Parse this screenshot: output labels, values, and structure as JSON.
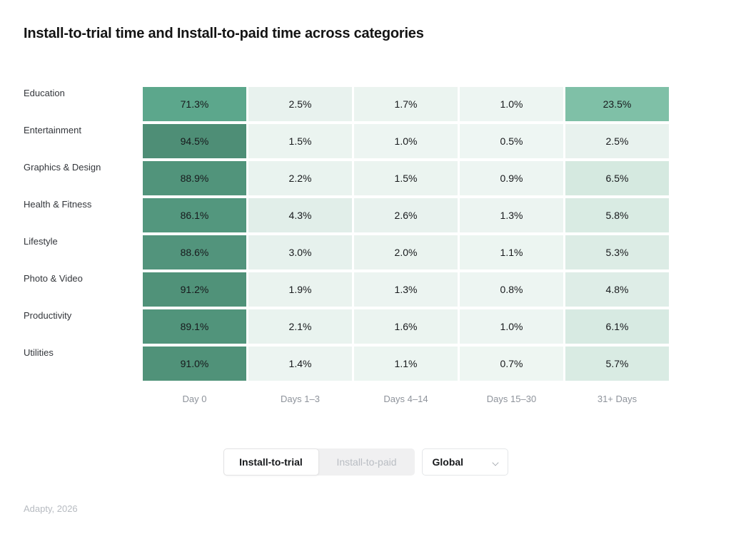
{
  "title": "Install-to-trial time and Install-to-paid time across categories",
  "chart_data": {
    "type": "heatmap",
    "rows": [
      "Education",
      "Entertainment",
      "Graphics & Design",
      "Health & Fitness",
      "Lifestyle",
      "Photo & Video",
      "Productivity",
      "Utilities"
    ],
    "columns": [
      "Day 0",
      "Days 1–3",
      "Days 4–14",
      "Days 15–30",
      "31+ Days"
    ],
    "values": [
      [
        71.3,
        2.5,
        1.7,
        1.0,
        23.5
      ],
      [
        94.5,
        1.5,
        1.0,
        0.5,
        2.5
      ],
      [
        88.9,
        2.2,
        1.5,
        0.9,
        6.5
      ],
      [
        86.1,
        4.3,
        2.6,
        1.3,
        5.8
      ],
      [
        88.6,
        3.0,
        2.0,
        1.1,
        5.3
      ],
      [
        91.2,
        1.9,
        1.3,
        0.8,
        4.8
      ],
      [
        89.1,
        2.1,
        1.6,
        1.0,
        6.1
      ],
      [
        91.0,
        1.4,
        1.1,
        0.7,
        5.7
      ]
    ],
    "unit": "%",
    "value_format": "one_decimal_percent",
    "legend": "none",
    "grid": "white 3px gaps between cells",
    "color_scale": {
      "stops": [
        {
          "value": 0,
          "color": "#f0f7f4"
        },
        {
          "value": 2.5,
          "color": "#e8f2ee"
        },
        {
          "value": 4.5,
          "color": "#e0eee8"
        },
        {
          "value": 6.5,
          "color": "#d5e9e0"
        },
        {
          "value": 23.5,
          "color": "#7fc0a7"
        },
        {
          "value": 71.3,
          "color": "#5ca78c"
        },
        {
          "value": 94.5,
          "color": "#4e8e76"
        }
      ]
    }
  },
  "controls": {
    "toggle": [
      {
        "label": "Install-to-trial",
        "active": true
      },
      {
        "label": "Install-to-paid",
        "active": false
      }
    ],
    "region_dropdown": {
      "value": "Global"
    }
  },
  "footer": {
    "credit": "Adapty, 2026"
  }
}
